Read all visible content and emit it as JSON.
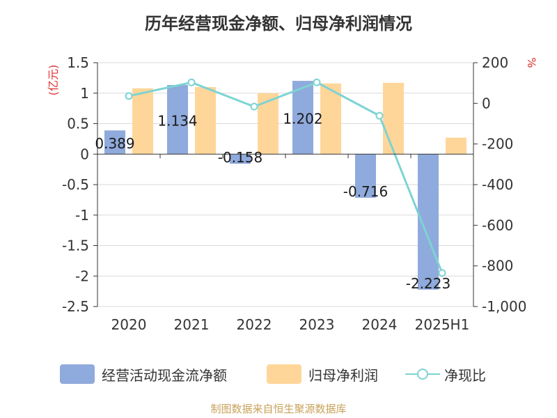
{
  "chart_data": {
    "type": "bar",
    "title": "历年经营现金净额、归母净利润情况",
    "categories": [
      "2020",
      "2021",
      "2022",
      "2023",
      "2024",
      "2025H1"
    ],
    "series": [
      {
        "name": "经营活动现金流净额",
        "type": "bar",
        "axis": "left",
        "color": "#8faadc",
        "values": [
          0.389,
          1.134,
          -0.158,
          1.202,
          -0.716,
          -2.223
        ],
        "labels": [
          "0.389",
          "1.134",
          "-0.158",
          "1.202",
          "-0.716",
          "-2.223"
        ]
      },
      {
        "name": "归母净利润",
        "type": "bar",
        "axis": "left",
        "color": "#ffd699",
        "values": [
          1.08,
          1.1,
          1.0,
          1.16,
          1.17,
          0.27
        ]
      },
      {
        "name": "净现比",
        "type": "line",
        "axis": "right",
        "color": "#7dd3d3",
        "values": [
          36,
          103,
          -16,
          103,
          -61,
          -835
        ]
      }
    ],
    "y_left": {
      "label": "(亿元)",
      "ylim": [
        -2.5,
        1.5
      ],
      "ticks": [
        1.5,
        1,
        0.5,
        0,
        -0.5,
        -1,
        -1.5,
        -2,
        -2.5
      ],
      "tick_labels": [
        "1.5",
        "1",
        "0.5",
        "0",
        "-0.5",
        "-1",
        "-1.5",
        "-2",
        "-2.5"
      ]
    },
    "y_right": {
      "label": "%",
      "ylim": [
        -1000,
        200
      ],
      "ticks": [
        200,
        0,
        -200,
        -400,
        -600,
        -800,
        -1000
      ],
      "tick_labels": [
        "200",
        "0",
        "-200",
        "-400",
        "-600",
        "-800",
        "-1,000"
      ]
    },
    "grid": true,
    "legend_position": "bottom"
  },
  "source": "制图数据来自恒生聚源数据库"
}
